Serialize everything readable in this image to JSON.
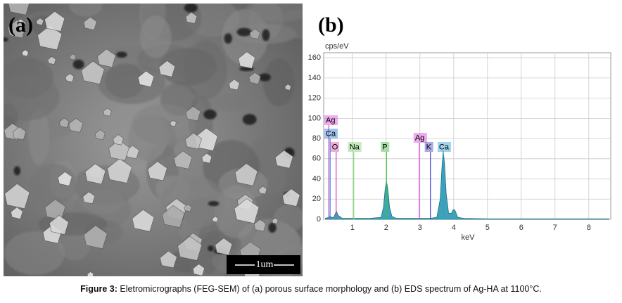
{
  "figure": {
    "panel_a": "(a)",
    "panel_b": "(b)",
    "scale_bar": "1um",
    "caption": {
      "label": "Figure 3:",
      "text": "Eletromicrographs (FEG-SEM) of (a) porous surface morphology and (b) EDS spectrum of Ag-HA at 1100°C."
    }
  },
  "chart_data": {
    "type": "area",
    "ylabel": "cps/eV",
    "xlabel": "keV",
    "xlim": [
      0.15,
      8.65
    ],
    "ylim": [
      0,
      165
    ],
    "xticks": [
      1,
      2,
      3,
      4,
      5,
      6,
      7,
      8
    ],
    "yticks": [
      0,
      20,
      40,
      60,
      80,
      100,
      120,
      140,
      160
    ],
    "grid": true,
    "color": "#3ea3b8",
    "x": [
      0.2,
      0.3,
      0.34,
      0.38,
      0.45,
      0.5,
      0.53,
      0.58,
      0.7,
      1.0,
      1.5,
      1.85,
      1.92,
      1.97,
      2.01,
      2.05,
      2.1,
      2.17,
      2.3,
      2.6,
      2.9,
      3.3,
      3.5,
      3.6,
      3.65,
      3.69,
      3.73,
      3.78,
      3.85,
      3.93,
      3.98,
      4.01,
      4.05,
      4.12,
      4.3,
      5,
      6,
      7,
      8,
      8.6
    ],
    "values": [
      1,
      2,
      3,
      2,
      2,
      6,
      8,
      4,
      1,
      1,
      1,
      2,
      12,
      30,
      38,
      30,
      12,
      3,
      1,
      1,
      1,
      1,
      2,
      20,
      50,
      68,
      55,
      25,
      6,
      6,
      9,
      10,
      8,
      2,
      1,
      0.5,
      0.5,
      0.5,
      0.5,
      0.5
    ],
    "elements": [
      {
        "label": "Ag",
        "energy": 0.3,
        "color": "#d946d9"
      },
      {
        "label": "Ca",
        "energy": 0.34,
        "color": "#2a7fd4"
      },
      {
        "label": "O",
        "energy": 0.52,
        "color": "#d946b0"
      },
      {
        "label": "Na",
        "energy": 1.04,
        "color": "#7fd46a"
      },
      {
        "label": "P",
        "energy": 2.01,
        "color": "#3cc23c"
      },
      {
        "label": "Ag",
        "energy": 2.98,
        "color": "#d946d9"
      },
      {
        "label": "K",
        "energy": 3.31,
        "color": "#4040c8"
      },
      {
        "label": "Ca",
        "energy": 3.69,
        "color": "#2a9fd4"
      }
    ]
  }
}
